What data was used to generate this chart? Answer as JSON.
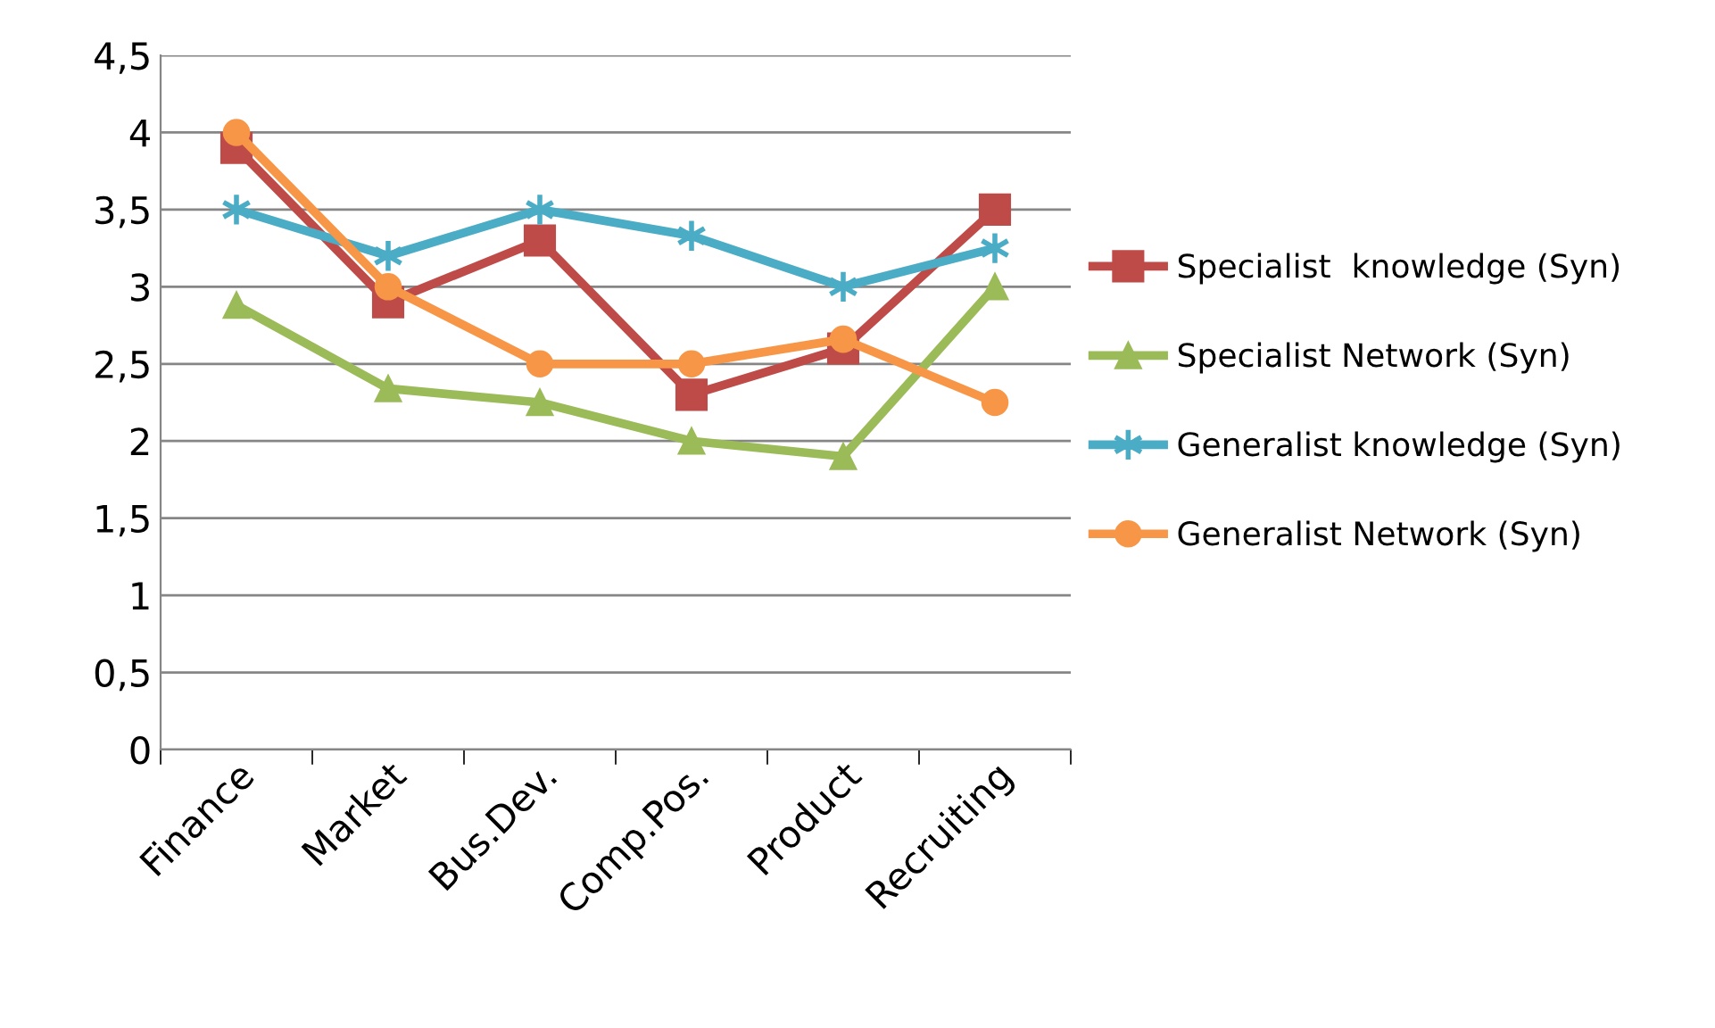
{
  "chart_data": {
    "type": "line",
    "categories": [
      "Finance",
      "Market",
      "Bus.Dev.",
      "Comp.Pos.",
      "Product",
      "Recruiting"
    ],
    "series": [
      {
        "name": "Specialist  knowledge (Syn)",
        "color": "#be4b48",
        "marker": "square",
        "values": [
          3.9,
          2.9,
          3.3,
          2.3,
          2.6,
          3.5
        ]
      },
      {
        "name": "Specialist Network (Syn)",
        "color": "#9bbb59",
        "marker": "triangle",
        "values": [
          2.88,
          2.34,
          2.25,
          2.0,
          1.9,
          3.0
        ]
      },
      {
        "name": "Generalist knowledge (Syn)",
        "color": "#4bacc6",
        "marker": "cross",
        "values": [
          3.5,
          3.2,
          3.5,
          3.33,
          3.0,
          3.25
        ]
      },
      {
        "name": "Generalist Network (Syn)",
        "color": "#f79646",
        "marker": "circle",
        "values": [
          4.0,
          3.0,
          2.5,
          2.5,
          2.66,
          2.25
        ]
      }
    ],
    "ylim": [
      0,
      4.5
    ],
    "yticks": [
      0,
      {
        "value": 0.5,
        "label": "0,5"
      },
      1,
      {
        "value": 1.5,
        "label": "1,5"
      },
      2,
      {
        "value": 2.5,
        "label": "2,5"
      },
      3,
      {
        "value": 3.5,
        "label": "3,5"
      },
      4,
      {
        "value": 4.5,
        "label": "4,5"
      }
    ],
    "grid": "y",
    "legend": "right",
    "line_style": "solid"
  }
}
